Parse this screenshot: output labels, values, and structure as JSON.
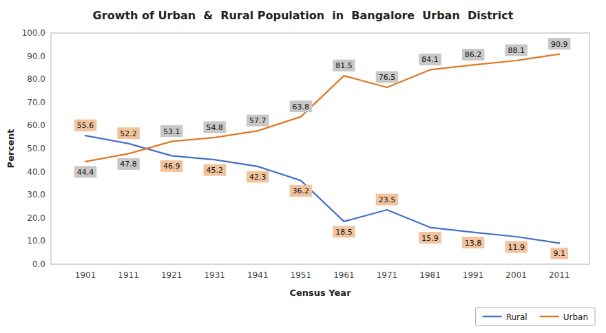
{
  "chart_data": {
    "type": "line",
    "title": "Growth of Urban  &  Rural Population  in  Bangalore  Urban  District",
    "x_label": "Census Year",
    "y_label": "Percent",
    "x": [
      1901,
      1911,
      1921,
      1931,
      1941,
      1951,
      1961,
      1971,
      1981,
      1991,
      2001,
      2011
    ],
    "series": [
      {
        "name": "Rural",
        "color": "#4472C4",
        "values": [
          55.6,
          52.2,
          46.9,
          45.2,
          42.3,
          36.2,
          18.5,
          23.5,
          15.9,
          13.8,
          11.9,
          9.1
        ]
      },
      {
        "name": "Urban",
        "color": "#E07820",
        "values": [
          44.4,
          47.8,
          53.1,
          54.8,
          57.7,
          63.8,
          81.5,
          76.5,
          84.1,
          86.2,
          88.1,
          90.9
        ]
      }
    ],
    "xlim": [
      1893,
      2018
    ],
    "xticks": [
      1901,
      1911,
      1921,
      1931,
      1941,
      1951,
      1961,
      1971,
      1981,
      1991,
      2001,
      2011
    ],
    "ylim": [
      0,
      100
    ],
    "yticks": [
      {
        "value": 0,
        "label": "0.0"
      },
      {
        "value": 10,
        "label": "10.0"
      },
      {
        "value": 20,
        "label": "20.0"
      },
      {
        "value": 30,
        "label": "30.0"
      },
      {
        "value": 40,
        "label": "40.0"
      },
      {
        "value": 50,
        "label": "50.0"
      },
      {
        "value": 60,
        "label": "60.0"
      },
      {
        "value": 70,
        "label": "70.0"
      },
      {
        "value": 80,
        "label": "80.0"
      },
      {
        "value": 90,
        "label": "90.0"
      },
      {
        "value": 100,
        "label": "100.0"
      }
    ],
    "grid": false,
    "legend": "bottom",
    "data_labels": true
  }
}
